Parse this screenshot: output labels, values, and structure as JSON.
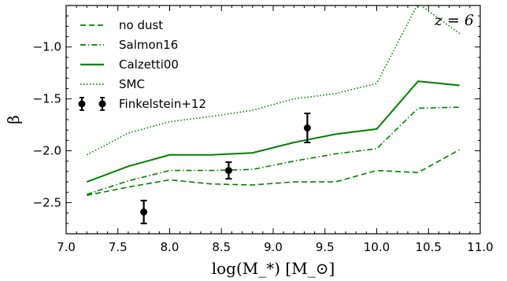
{
  "chart_data": {
    "type": "line",
    "xlabel": "log(M_*) [M_⊙]",
    "ylabel": "β",
    "annotation": "z = 6",
    "xlim": [
      7.0,
      11.0
    ],
    "ylim": [
      -2.8,
      -0.6
    ],
    "xticks": [
      "7.0",
      "7.5",
      "8.0",
      "8.5",
      "9.0",
      "9.5",
      "10.0",
      "10.5",
      "11.0"
    ],
    "yticks": [
      "−1.0",
      "−1.5",
      "−2.0",
      "−2.5"
    ],
    "legend_position": "top-left",
    "grid": false,
    "series": [
      {
        "name": "no dust",
        "style": "dashed",
        "color": "#008000",
        "x": [
          7.2,
          7.6,
          8.0,
          8.4,
          8.8,
          9.2,
          9.6,
          10.0,
          10.4,
          10.8
        ],
        "y": [
          -2.43,
          -2.35,
          -2.28,
          -2.32,
          -2.33,
          -2.3,
          -2.3,
          -2.19,
          -2.21,
          -1.99
        ]
      },
      {
        "name": "Salmon16",
        "style": "dashdot",
        "color": "#008000",
        "x": [
          7.2,
          7.6,
          8.0,
          8.4,
          8.8,
          9.2,
          9.6,
          10.0,
          10.4,
          10.8
        ],
        "y": [
          -2.42,
          -2.29,
          -2.19,
          -2.19,
          -2.18,
          -2.1,
          -2.03,
          -1.98,
          -1.59,
          -1.58
        ]
      },
      {
        "name": "Calzetti00",
        "style": "solid",
        "color": "#008000",
        "x": [
          7.2,
          7.6,
          8.0,
          8.4,
          8.8,
          9.2,
          9.6,
          10.0,
          10.4,
          10.8
        ],
        "y": [
          -2.3,
          -2.15,
          -2.04,
          -2.04,
          -2.02,
          -1.92,
          -1.84,
          -1.79,
          -1.33,
          -1.37
        ]
      },
      {
        "name": "SMC",
        "style": "dotted",
        "color": "#008000",
        "x": [
          7.2,
          7.6,
          8.0,
          8.4,
          8.8,
          9.2,
          9.6,
          10.0,
          10.4,
          10.8
        ],
        "y": [
          -2.04,
          -1.83,
          -1.72,
          -1.67,
          -1.61,
          -1.5,
          -1.45,
          -1.35,
          -0.58,
          -0.87
        ]
      },
      {
        "name": "Finkelstein+12",
        "style": "errorbar",
        "color": "#000000",
        "x": [
          7.75,
          8.57,
          9.33
        ],
        "y": [
          -2.59,
          -2.19,
          -1.78
        ],
        "yerr": [
          0.11,
          0.08,
          0.14
        ]
      }
    ]
  }
}
